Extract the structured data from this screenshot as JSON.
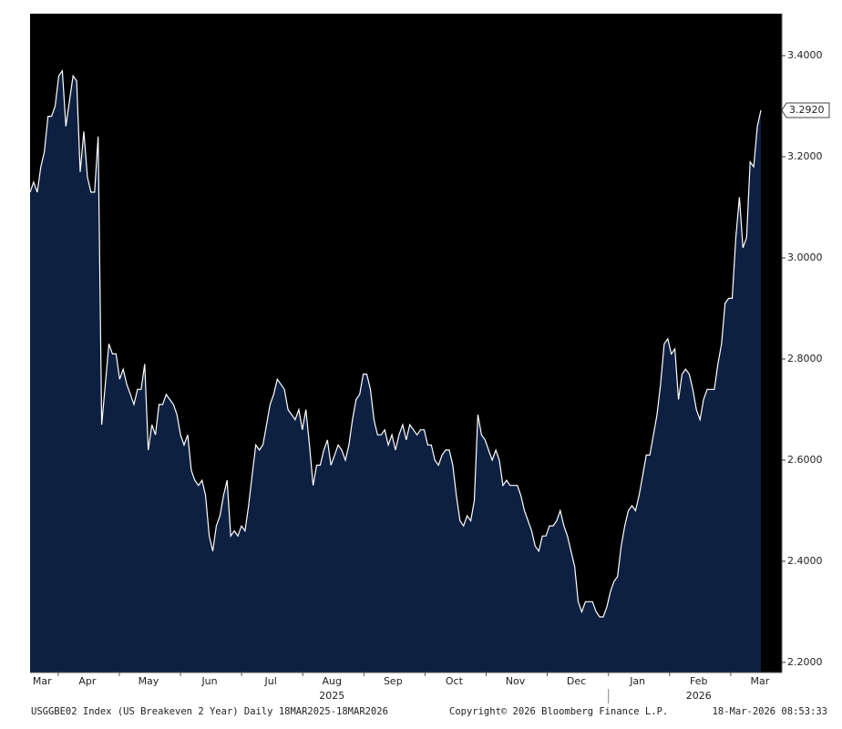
{
  "chart_data": {
    "type": "area",
    "footer_left": "USGGBE02 Index (US Breakeven 2 Year) Daily 18MAR2025-18MAR2026",
    "footer_center": "Copyright© 2026 Bloomberg Finance L.P.",
    "footer_right": "18-Mar-2026 08:53:33",
    "x_labels": [
      "Mar",
      "Apr",
      "May",
      "Jun",
      "Jul",
      "Aug",
      "Sep",
      "Oct",
      "Nov",
      "Dec",
      "Jan",
      "Feb",
      "Mar"
    ],
    "year_labels": [
      "2025",
      "2026"
    ],
    "fill_color": "#0e2042",
    "line_color": "#ffffff",
    "background": "#000000",
    "values": [
      3.13,
      3.15,
      3.13,
      3.18,
      3.21,
      3.28,
      3.28,
      3.3,
      3.36,
      3.37,
      3.26,
      3.31,
      3.36,
      3.35,
      3.17,
      3.25,
      3.16,
      3.13,
      3.13,
      3.24,
      2.67,
      2.75,
      2.83,
      2.81,
      2.81,
      2.76,
      2.78,
      2.75,
      2.73,
      2.71,
      2.74,
      2.74,
      2.79,
      2.62,
      2.67,
      2.65,
      2.71,
      2.71,
      2.73,
      2.72,
      2.71,
      2.69,
      2.65,
      2.63,
      2.65,
      2.58,
      2.56,
      2.55,
      2.56,
      2.53,
      2.45,
      2.42,
      2.47,
      2.49,
      2.53,
      2.56,
      2.45,
      2.46,
      2.45,
      2.47,
      2.46,
      2.51,
      2.57,
      2.63,
      2.62,
      2.63,
      2.67,
      2.71,
      2.73,
      2.76,
      2.75,
      2.74,
      2.7,
      2.69,
      2.68,
      2.7,
      2.66,
      2.7,
      2.63,
      2.55,
      2.59,
      2.59,
      2.62,
      2.64,
      2.59,
      2.61,
      2.63,
      2.62,
      2.6,
      2.63,
      2.68,
      2.72,
      2.73,
      2.77,
      2.77,
      2.74,
      2.68,
      2.65,
      2.65,
      2.66,
      2.63,
      2.65,
      2.62,
      2.65,
      2.67,
      2.64,
      2.67,
      2.66,
      2.65,
      2.66,
      2.66,
      2.63,
      2.63,
      2.6,
      2.59,
      2.61,
      2.62,
      2.62,
      2.59,
      2.53,
      2.48,
      2.47,
      2.49,
      2.48,
      2.52,
      2.69,
      2.65,
      2.64,
      2.62,
      2.6,
      2.62,
      2.6,
      2.55,
      2.56,
      2.55,
      2.55,
      2.55,
      2.53,
      2.5,
      2.48,
      2.46,
      2.43,
      2.42,
      2.45,
      2.45,
      2.47,
      2.47,
      2.48,
      2.5,
      2.47,
      2.45,
      2.42,
      2.39,
      2.32,
      2.3,
      2.32,
      2.32,
      2.32,
      2.3,
      2.29,
      2.29,
      2.31,
      2.34,
      2.36,
      2.37,
      2.43,
      2.47,
      2.5,
      2.51,
      2.5,
      2.53,
      2.57,
      2.61,
      2.61,
      2.65,
      2.69,
      2.75,
      2.83,
      2.84,
      2.81,
      2.82,
      2.72,
      2.77,
      2.78,
      2.77,
      2.74,
      2.7,
      2.68,
      2.72,
      2.74,
      2.74,
      2.74,
      2.79,
      2.83,
      2.91,
      2.92,
      2.92,
      3.04,
      3.12,
      3.02,
      3.04,
      3.19,
      3.18,
      3.26,
      3.292
    ],
    "last_value_label": "3.2920",
    "ylim": [
      2.18,
      3.483
    ],
    "yticks": [
      {
        "value": 2.2,
        "label": "2.2000"
      },
      {
        "value": 2.4,
        "label": "2.4000"
      },
      {
        "value": 2.6,
        "label": "2.6000"
      },
      {
        "value": 2.8,
        "label": "2.8000"
      },
      {
        "value": 3.0,
        "label": "3.0000"
      },
      {
        "value": 3.2,
        "label": "3.2000"
      },
      {
        "value": 3.4,
        "label": "3.4000"
      }
    ],
    "y_axis_side": "right"
  }
}
